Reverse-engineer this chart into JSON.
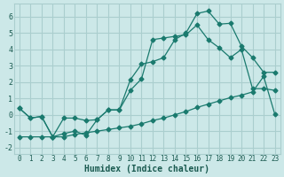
{
  "title": "",
  "xlabel": "Humidex (Indice chaleur)",
  "ylabel": "",
  "bg_color": "#cce8e8",
  "grid_color": "#aacece",
  "line_color": "#1a7a6e",
  "xlim": [
    -0.5,
    23.5
  ],
  "ylim": [
    -2.4,
    6.8
  ],
  "xticks": [
    0,
    1,
    2,
    3,
    4,
    5,
    6,
    7,
    8,
    9,
    10,
    11,
    12,
    13,
    14,
    15,
    16,
    17,
    18,
    19,
    20,
    21,
    22,
    23
  ],
  "yticks": [
    -2,
    -1,
    0,
    1,
    2,
    3,
    4,
    5,
    6
  ],
  "line1_x": [
    0,
    1,
    2,
    3,
    4,
    5,
    6,
    7,
    8,
    9,
    10,
    11,
    12,
    13,
    14,
    15,
    16,
    17,
    18,
    19,
    20,
    21,
    22,
    23
  ],
  "line1_y": [
    0.4,
    -0.2,
    -0.1,
    -1.35,
    -0.2,
    -0.2,
    -0.35,
    -0.3,
    0.3,
    0.3,
    2.15,
    3.1,
    3.25,
    3.5,
    4.6,
    5.0,
    6.2,
    6.35,
    5.55,
    5.6,
    4.2,
    3.5,
    2.6,
    2.6
  ],
  "line2_x": [
    0,
    1,
    2,
    3,
    4,
    5,
    6,
    7,
    8,
    9,
    10,
    11,
    12,
    13,
    14,
    15,
    16,
    17,
    18,
    19,
    20,
    21,
    22,
    23
  ],
  "line2_y": [
    0.4,
    -0.2,
    -0.1,
    -1.35,
    -1.15,
    -1.0,
    -1.25,
    -0.3,
    0.3,
    0.3,
    1.5,
    2.2,
    4.6,
    4.7,
    4.8,
    4.9,
    5.5,
    4.6,
    4.1,
    3.5,
    4.0,
    1.6,
    1.6,
    1.5
  ],
  "line3_x": [
    0,
    1,
    2,
    3,
    4,
    5,
    6,
    7,
    8,
    9,
    10,
    11,
    12,
    13,
    14,
    15,
    16,
    17,
    18,
    19,
    20,
    21,
    22,
    23
  ],
  "line3_y": [
    -1.35,
    -1.35,
    -1.35,
    -1.35,
    -1.35,
    -1.2,
    -1.1,
    -1.0,
    -0.9,
    -0.8,
    -0.7,
    -0.55,
    -0.35,
    -0.2,
    0.0,
    0.2,
    0.45,
    0.65,
    0.85,
    1.05,
    1.2,
    1.4,
    2.35,
    0.05
  ],
  "marker": "D",
  "marker_size": 2.5,
  "font_color": "#1a5a50"
}
